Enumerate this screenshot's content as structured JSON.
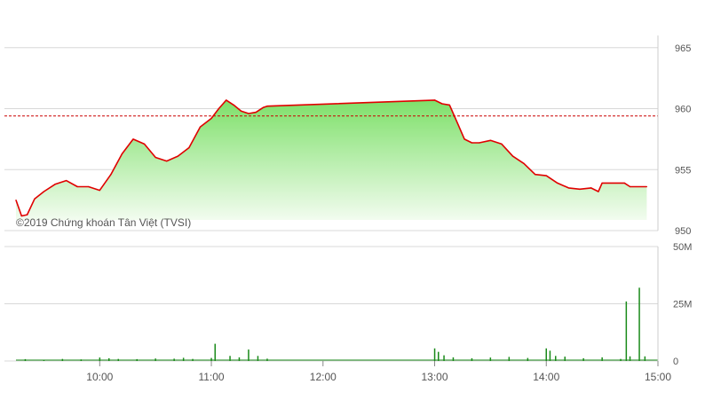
{
  "watermark": "©2019 Chứng khoán Tân Việt (TVSI)",
  "colors": {
    "price_line": "#e00000",
    "reference_line": "#cc0000",
    "area_top": "#7ee06a",
    "area_bottom": "#f2fcef",
    "volume_bar": "#1a8a1a",
    "grid": "#d8d8d8",
    "axis_text": "#555555"
  },
  "chart_data": [
    {
      "type": "line",
      "title": "",
      "xlabel": "",
      "ylabel": "",
      "x_ticks": [
        "10:00",
        "11:00",
        "12:00",
        "13:00",
        "14:00",
        "15:00"
      ],
      "y_ticks": [
        "950",
        "955",
        "960",
        "965"
      ],
      "ylim": [
        950,
        966
      ],
      "xlim": [
        "09:15",
        "15:00"
      ],
      "reference_value": 959.4,
      "fill_area": true,
      "grid": true,
      "x": [
        "09:15",
        "09:18",
        "09:21",
        "09:25",
        "09:30",
        "09:36",
        "09:42",
        "09:48",
        "09:54",
        "10:00",
        "10:06",
        "10:12",
        "10:18",
        "10:24",
        "10:30",
        "10:36",
        "10:42",
        "10:48",
        "10:54",
        "11:00",
        "11:04",
        "11:08",
        "11:12",
        "11:16",
        "11:20",
        "11:24",
        "11:28",
        "11:30",
        "13:00",
        "13:04",
        "13:08",
        "13:12",
        "13:16",
        "13:20",
        "13:24",
        "13:30",
        "13:36",
        "13:42",
        "13:48",
        "13:54",
        "14:00",
        "14:06",
        "14:12",
        "14:18",
        "14:24",
        "14:28",
        "14:30",
        "14:42",
        "14:45",
        "14:54"
      ],
      "values": [
        952.5,
        951.2,
        951.3,
        952.6,
        953.2,
        953.8,
        954.1,
        953.6,
        953.6,
        953.3,
        954.6,
        956.3,
        957.5,
        957.1,
        956.0,
        955.7,
        956.1,
        956.8,
        958.5,
        959.2,
        960.0,
        960.7,
        960.3,
        959.8,
        959.6,
        959.7,
        960.1,
        960.2,
        960.7,
        960.4,
        960.3,
        958.9,
        957.5,
        957.2,
        957.2,
        957.4,
        957.1,
        956.1,
        955.5,
        954.6,
        954.5,
        953.9,
        953.5,
        953.4,
        953.5,
        953.2,
        953.9,
        953.9,
        953.6,
        953.6
      ]
    },
    {
      "type": "bar",
      "title": "",
      "xlabel": "",
      "ylabel": "",
      "y_ticks": [
        "0",
        "25M",
        "50M"
      ],
      "ylim": [
        0,
        50
      ],
      "unit": "M",
      "grid": true,
      "x": [
        "09:20",
        "09:30",
        "09:40",
        "09:50",
        "10:00",
        "10:05",
        "10:10",
        "10:20",
        "10:30",
        "10:40",
        "10:45",
        "10:50",
        "11:00",
        "11:02",
        "11:10",
        "11:15",
        "11:20",
        "11:25",
        "11:30",
        "13:00",
        "13:02",
        "13:05",
        "13:10",
        "13:20",
        "13:30",
        "13:40",
        "13:50",
        "14:00",
        "14:02",
        "14:05",
        "14:10",
        "14:20",
        "14:30",
        "14:40",
        "14:43",
        "14:45",
        "14:50",
        "14:53"
      ],
      "values": [
        0.8,
        0.6,
        0.9,
        0.7,
        1.5,
        1.2,
        0.9,
        0.8,
        1.1,
        1.0,
        1.4,
        0.9,
        1.3,
        7.5,
        2.2,
        1.6,
        5.0,
        2.2,
        1.0,
        5.5,
        4.0,
        2.5,
        1.6,
        1.2,
        1.5,
        1.8,
        1.3,
        5.5,
        4.5,
        2.2,
        1.9,
        1.2,
        1.6,
        0.9,
        26.0,
        2.0,
        32.0,
        2.0
      ]
    }
  ]
}
